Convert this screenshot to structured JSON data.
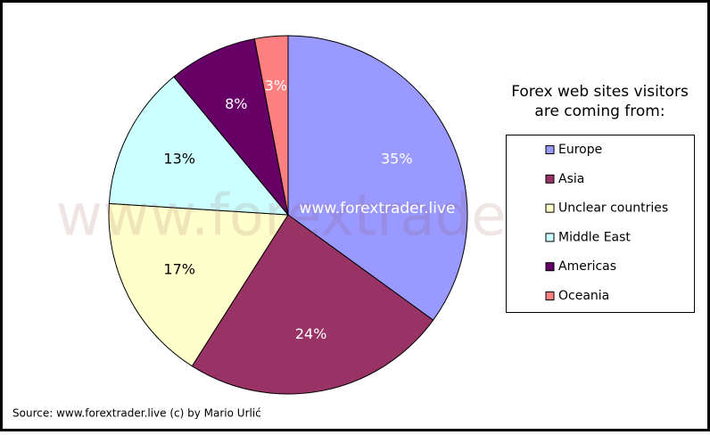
{
  "chart_data": {
    "type": "pie",
    "title": "Forex web sites visitors are coming from:",
    "categories": [
      "Europe",
      "Asia",
      "Unclear countries",
      "Middle East",
      "Americas",
      "Oceania"
    ],
    "values": [
      35,
      24,
      17,
      13,
      8,
      3
    ],
    "value_labels": [
      "35%",
      "24%",
      "17%",
      "13%",
      "8%",
      "3%"
    ],
    "colors": [
      "#9999ff",
      "#993366",
      "#ffffcc",
      "#ccffff",
      "#660066",
      "#ff8080"
    ],
    "watermark": "www.forextrader.live",
    "center_label": "www.forextrader.live",
    "source": "Source: www.forextrader.live (c) by Mario Urlić"
  }
}
